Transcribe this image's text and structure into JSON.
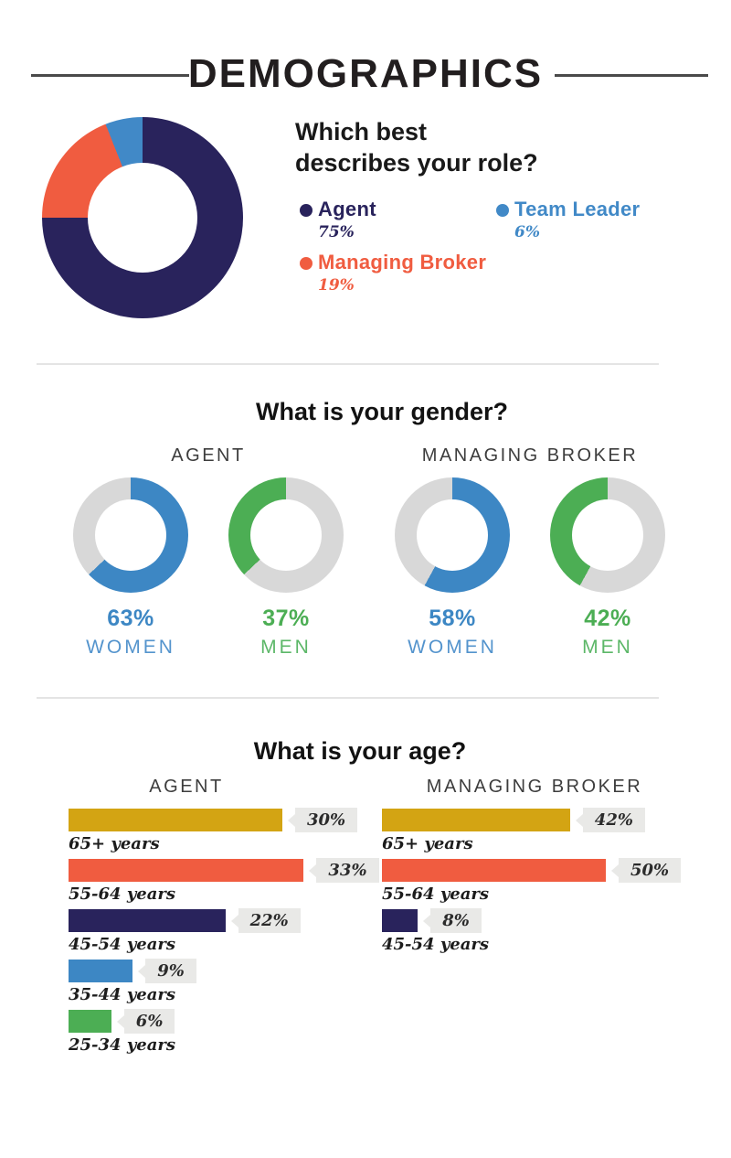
{
  "header": {
    "title": "DEMOGRAPHICS"
  },
  "role_section": {
    "heading": "Which best\ndescribes your role?",
    "legend": [
      {
        "label": "Agent",
        "value": "75%",
        "color": "#29235C"
      },
      {
        "label": "Team Leader",
        "value": "6%",
        "color": "#4189C7"
      },
      {
        "label": "Managing Broker",
        "value": "19%",
        "color": "#F05C40"
      }
    ],
    "donut": {
      "segments": [
        {
          "color": "#29235C",
          "pct": 75
        },
        {
          "color": "#F05C40",
          "pct": 19
        },
        {
          "color": "#4189C7",
          "pct": 6
        }
      ]
    }
  },
  "gender_section": {
    "heading": "What is your gender?",
    "track_color": "#D8D8D8",
    "groups": [
      {
        "name": "AGENT",
        "donuts": [
          {
            "percent": "63%",
            "label": "WOMEN",
            "color": "#3D87C4",
            "label_color": "#5494CD",
            "segments": [
              {
                "color": "#3D87C4",
                "pct": 63
              },
              {
                "color": "#D8D8D8",
                "pct": 37
              }
            ]
          },
          {
            "percent": "37%",
            "label": "MEN",
            "color": "#4CAE54",
            "label_color": "#5CB768",
            "segments": [
              {
                "color": "#D8D8D8",
                "pct": 63
              },
              {
                "color": "#4CAE54",
                "pct": 37
              }
            ]
          }
        ]
      },
      {
        "name": "MANAGING BROKER",
        "donuts": [
          {
            "percent": "58%",
            "label": "WOMEN",
            "color": "#3D87C4",
            "label_color": "#5494CD",
            "segments": [
              {
                "color": "#3D87C4",
                "pct": 58
              },
              {
                "color": "#D8D8D8",
                "pct": 42
              }
            ]
          },
          {
            "percent": "42%",
            "label": "MEN",
            "color": "#4CAE54",
            "label_color": "#5CB768",
            "segments": [
              {
                "color": "#D8D8D8",
                "pct": 58
              },
              {
                "color": "#4CAE54",
                "pct": 42
              }
            ]
          }
        ]
      }
    ]
  },
  "age_section": {
    "heading": "What is your age?",
    "groups": [
      {
        "name": "AGENT",
        "rows": [
          {
            "label": "65+ years",
            "value": 30,
            "display": "30%",
            "color": "#D3A413"
          },
          {
            "label": "55-64 years",
            "value": 33,
            "display": "33%",
            "color": "#F05C40"
          },
          {
            "label": "45-54 years",
            "value": 22,
            "display": "22%",
            "color": "#29235C"
          },
          {
            "label": "35-44 years",
            "value": 9,
            "display": "9%",
            "color": "#3D87C4"
          },
          {
            "label": "25-34 years",
            "value": 6,
            "display": "6%",
            "color": "#4CAE54"
          }
        ]
      },
      {
        "name": "MANAGING BROKER",
        "rows": [
          {
            "label": "65+ years",
            "value": 42,
            "display": "42%",
            "color": "#D3A413"
          },
          {
            "label": "55-64 years",
            "value": 50,
            "display": "50%",
            "color": "#F05C40"
          },
          {
            "label": "45-54 years",
            "value": 8,
            "display": "8%",
            "color": "#29235C"
          }
        ]
      }
    ]
  },
  "chart_data": [
    {
      "type": "pie",
      "donut": true,
      "title": "Which best describes your role?",
      "labels": [
        "Agent",
        "Managing Broker",
        "Team Leader"
      ],
      "values": [
        75,
        19,
        6
      ],
      "colors": [
        "#29235C",
        "#F05C40",
        "#4189C7"
      ],
      "legend_position": "right",
      "start_angle": "12 o'clock",
      "direction": "clockwise"
    },
    {
      "type": "pie",
      "donut": true,
      "title": "What is your gender? — AGENT",
      "labels": [
        "Women",
        "Men"
      ],
      "values": [
        63,
        37
      ],
      "colors": [
        "#3D87C4",
        "#4CAE54"
      ],
      "track_color": "#D8D8D8"
    },
    {
      "type": "pie",
      "donut": true,
      "title": "What is your gender? — MANAGING BROKER",
      "labels": [
        "Women",
        "Men"
      ],
      "values": [
        58,
        42
      ],
      "colors": [
        "#3D87C4",
        "#4CAE54"
      ],
      "track_color": "#D8D8D8"
    },
    {
      "type": "bar",
      "orientation": "horizontal",
      "title": "What is your age? — AGENT",
      "categories": [
        "65+ years",
        "55-64 years",
        "45-54 years",
        "35-44 years",
        "25-34 years"
      ],
      "values": [
        30,
        33,
        22,
        9,
        6
      ],
      "colors": [
        "#D3A413",
        "#F05C40",
        "#29235C",
        "#3D87C4",
        "#4CAE54"
      ],
      "xlim": [
        0,
        33
      ],
      "grid": false
    },
    {
      "type": "bar",
      "orientation": "horizontal",
      "title": "What is your age? — MANAGING BROKER",
      "categories": [
        "65+ years",
        "55-64 years",
        "45-54 years"
      ],
      "values": [
        42,
        50,
        8
      ],
      "colors": [
        "#D3A413",
        "#F05C40",
        "#29235C"
      ],
      "xlim": [
        0,
        50
      ],
      "grid": false
    }
  ]
}
